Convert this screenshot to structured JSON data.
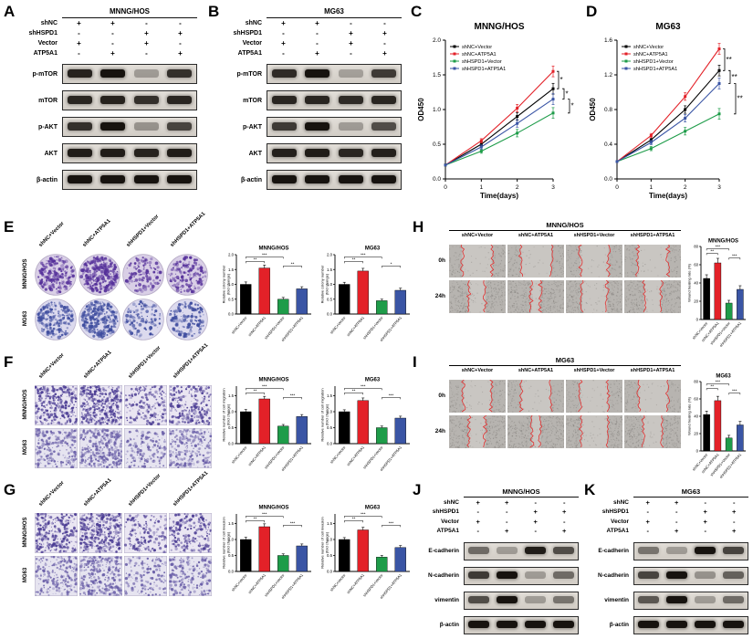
{
  "conditions": [
    "shNC+Vector",
    "shNC+ATP5A1",
    "shHSPD1+Vector",
    "shHSPD1+ATP5A1"
  ],
  "condition_rows": [
    {
      "name": "shNC",
      "signs": [
        "+",
        "+",
        "-",
        "-"
      ]
    },
    {
      "name": "shHSPD1",
      "signs": [
        "-",
        "-",
        "+",
        "+"
      ]
    },
    {
      "name": "Vector",
      "signs": [
        "+",
        "-",
        "+",
        "-"
      ]
    },
    {
      "name": "ATP5A1",
      "signs": [
        "-",
        "+",
        "-",
        "+"
      ]
    }
  ],
  "colors": {
    "series": [
      "#000000",
      "#e32128",
      "#1e9c49",
      "#3a55a5"
    ],
    "band": "#17130f",
    "colony_bg1": "#d9cfe6",
    "colony_dot1": "#55309a",
    "colony_bg2": "#dcdaee",
    "colony_dot2": "#3d4b9e",
    "transwell_bg1": "#eae6f2",
    "transwell_dot1": "#4a3b93",
    "transwell_bg2": "#e6e4f0",
    "transwell_dot2": "#6a5fa8",
    "wound_bg": "#b7b4b0",
    "wound_gap": "#c9c6c2",
    "wound_line": "#e23131"
  },
  "panelA": {
    "label": "A",
    "title": "MNNG/HOS",
    "proteins": [
      {
        "name": "p-mTOR",
        "intensities": [
          0.92,
          1,
          0.3,
          0.85
        ]
      },
      {
        "name": "mTOR",
        "intensities": [
          0.9,
          0.92,
          0.85,
          0.9
        ]
      },
      {
        "name": "p-AKT",
        "intensities": [
          0.85,
          1,
          0.35,
          0.75
        ]
      },
      {
        "name": "AKT",
        "intensities": [
          0.95,
          0.95,
          0.92,
          0.95
        ]
      },
      {
        "name": "β-actin",
        "intensities": [
          1,
          1,
          1,
          1
        ]
      }
    ]
  },
  "panelB": {
    "label": "B",
    "title": "MG63",
    "proteins": [
      {
        "name": "p-mTOR",
        "intensities": [
          0.88,
          1,
          0.28,
          0.8
        ]
      },
      {
        "name": "mTOR",
        "intensities": [
          0.9,
          0.9,
          0.88,
          0.9
        ]
      },
      {
        "name": "p-AKT",
        "intensities": [
          0.8,
          1,
          0.3,
          0.7
        ]
      },
      {
        "name": "AKT",
        "intensities": [
          0.93,
          0.95,
          0.9,
          0.93
        ]
      },
      {
        "name": "β-actin",
        "intensities": [
          1,
          1,
          1,
          1
        ]
      }
    ]
  },
  "panelC": {
    "label": "C",
    "title": "MNNG/HOS",
    "xlabel": "Time(days)",
    "ylabel": "OD450",
    "xticks": [
      0,
      1,
      2,
      3
    ],
    "yticks": [
      0,
      0.5,
      1,
      1.5,
      2
    ],
    "ylim": [
      0,
      2
    ],
    "series": [
      {
        "name": "shNC+Vector",
        "values": [
          0.2,
          0.5,
          0.9,
          1.3
        ]
      },
      {
        "name": "shNC+ATP5A1",
        "values": [
          0.2,
          0.55,
          1.02,
          1.55
        ]
      },
      {
        "name": "shHSPD1+Vector",
        "values": [
          0.2,
          0.4,
          0.66,
          0.95
        ]
      },
      {
        "name": "shHSPD1+ATP5A1",
        "values": [
          0.2,
          0.46,
          0.8,
          1.15
        ]
      }
    ],
    "sig": [
      "*",
      "*",
      "*"
    ]
  },
  "panelD": {
    "label": "D",
    "title": "MG63",
    "xlabel": "Time(days)",
    "ylabel": "OD450",
    "xticks": [
      0,
      1,
      2,
      3
    ],
    "yticks": [
      0,
      0.4,
      0.8,
      1.2,
      1.6
    ],
    "ylim": [
      0,
      1.6
    ],
    "series": [
      {
        "name": "shNC+Vector",
        "values": [
          0.2,
          0.45,
          0.8,
          1.25
        ]
      },
      {
        "name": "shNC+ATP5A1",
        "values": [
          0.2,
          0.5,
          0.95,
          1.5
        ]
      },
      {
        "name": "shHSPD1+Vector",
        "values": [
          0.2,
          0.35,
          0.55,
          0.75
        ]
      },
      {
        "name": "shHSPD1+ATP5A1",
        "values": [
          0.2,
          0.42,
          0.7,
          1.1
        ]
      }
    ],
    "sig": [
      "**",
      "**",
      "**"
    ]
  },
  "panelE": {
    "label": "E",
    "row_labels": [
      "MNNG/HOS",
      "MG63"
    ],
    "densities": [
      [
        0.7,
        1,
        0.3,
        0.5
      ],
      [
        0.55,
        0.85,
        0.25,
        0.45
      ]
    ],
    "charts": [
      {
        "title": "MNNG/HOS",
        "ylabel": [
          "Relative colony number",
          "(fold change)"
        ],
        "values": [
          1,
          1.55,
          0.5,
          0.85
        ],
        "errors": [
          0.08,
          0.1,
          0.06,
          0.07
        ],
        "yticks": [
          0,
          0.5,
          1,
          1.5,
          2
        ],
        "ylim": [
          0,
          2
        ],
        "sig": [
          [
            0,
            2,
            "***"
          ],
          [
            0,
            1,
            "**"
          ],
          [
            2,
            3,
            "**"
          ]
        ]
      },
      {
        "title": "MG63",
        "ylabel": [
          "Relative colony number",
          "(fold change)"
        ],
        "values": [
          1,
          1.45,
          0.45,
          0.8
        ],
        "errors": [
          0.07,
          0.09,
          0.05,
          0.07
        ],
        "yticks": [
          0,
          0.5,
          1,
          1.5,
          2
        ],
        "ylim": [
          0,
          2
        ],
        "sig": [
          [
            0,
            2,
            "***"
          ],
          [
            0,
            1,
            "**"
          ],
          [
            2,
            3,
            "*"
          ]
        ]
      }
    ]
  },
  "panelF": {
    "label": "F",
    "row_labels": [
      "MNNG/HOS",
      "MG63"
    ],
    "densities": [
      [
        0.75,
        1,
        0.35,
        0.55
      ],
      [
        0.6,
        0.9,
        0.3,
        0.5
      ]
    ],
    "charts": [
      {
        "title": "MNNG/HOS",
        "ylabel": [
          "Relative number of cell migration",
          "(fold change)"
        ],
        "values": [
          1,
          1.4,
          0.55,
          0.85
        ],
        "errors": [
          0.07,
          0.08,
          0.05,
          0.06
        ],
        "yticks": [
          0,
          0.5,
          1,
          1.5
        ],
        "ylim": [
          0,
          1.8
        ],
        "sig": [
          [
            0,
            2,
            "***"
          ],
          [
            0,
            1,
            "**"
          ],
          [
            2,
            3,
            "***"
          ]
        ]
      },
      {
        "title": "MG63",
        "ylabel": [
          "Relative number of cell migration",
          "(fold change)"
        ],
        "values": [
          1,
          1.35,
          0.5,
          0.8
        ],
        "errors": [
          0.06,
          0.08,
          0.05,
          0.06
        ],
        "yticks": [
          0,
          0.5,
          1,
          1.5
        ],
        "ylim": [
          0,
          1.8
        ],
        "sig": [
          [
            0,
            2,
            "***"
          ],
          [
            0,
            1,
            "**"
          ],
          [
            2,
            3,
            "***"
          ]
        ]
      }
    ]
  },
  "panelG": {
    "label": "G",
    "row_labels": [
      "MNNG/HOS",
      "MG63"
    ],
    "densities": [
      [
        0.7,
        0.95,
        0.3,
        0.5
      ],
      [
        0.55,
        0.85,
        0.25,
        0.45
      ]
    ],
    "charts": [
      {
        "title": "MNNG/HOS",
        "ylabel": [
          "Relative number of cell invasion",
          "(fold change)"
        ],
        "values": [
          1,
          1.4,
          0.5,
          0.8
        ],
        "errors": [
          0.07,
          0.09,
          0.05,
          0.06
        ],
        "yticks": [
          0,
          0.5,
          1,
          1.5
        ],
        "ylim": [
          0,
          1.8
        ],
        "sig": [
          [
            0,
            2,
            "***"
          ],
          [
            0,
            1,
            "**"
          ],
          [
            2,
            3,
            "***"
          ]
        ]
      },
      {
        "title": "MG63",
        "ylabel": [
          "Relative number of cell invasion",
          "(fold change)"
        ],
        "values": [
          1,
          1.3,
          0.45,
          0.75
        ],
        "errors": [
          0.06,
          0.08,
          0.05,
          0.06
        ],
        "yticks": [
          0,
          0.5,
          1,
          1.5
        ],
        "ylim": [
          0,
          1.8
        ],
        "sig": [
          [
            0,
            2,
            "***"
          ],
          [
            0,
            1,
            "**"
          ],
          [
            2,
            3,
            "***"
          ]
        ]
      }
    ]
  },
  "panelH": {
    "label": "H",
    "title": "MNNG/HOS",
    "row_labels": [
      "0h",
      "24h"
    ],
    "gaps": [
      [
        0.52,
        0.52,
        0.52,
        0.52
      ],
      [
        0.28,
        0.15,
        0.44,
        0.33
      ]
    ],
    "chart": {
      "title": "MNNG/HOS",
      "ylabel": [
        "Wound healing rate (%)"
      ],
      "values": [
        45,
        62,
        18,
        33
      ],
      "errors": [
        4,
        5,
        3,
        4
      ],
      "yticks": [
        0,
        20,
        40,
        60,
        80
      ],
      "ylim": [
        0,
        80
      ],
      "sig": [
        [
          0,
          2,
          "***"
        ],
        [
          0,
          1,
          "**"
        ],
        [
          2,
          3,
          "***"
        ]
      ]
    }
  },
  "panelI": {
    "label": "I",
    "title": "MG63",
    "row_labels": [
      "0h",
      "24h"
    ],
    "gaps": [
      [
        0.52,
        0.52,
        0.52,
        0.52
      ],
      [
        0.3,
        0.17,
        0.46,
        0.35
      ]
    ],
    "chart": {
      "title": "MG63",
      "ylabel": [
        "Wound healing rate (%)"
      ],
      "values": [
        42,
        58,
        15,
        30
      ],
      "errors": [
        4,
        5,
        3,
        4
      ],
      "yticks": [
        0,
        20,
        40,
        60,
        80
      ],
      "ylim": [
        0,
        80
      ],
      "sig": [
        [
          0,
          2,
          "***"
        ],
        [
          0,
          1,
          "**"
        ],
        [
          2,
          3,
          "***"
        ]
      ]
    }
  },
  "panelJ": {
    "label": "J",
    "title": "MNNG/HOS",
    "proteins": [
      {
        "name": "E-cadherin",
        "intensities": [
          0.55,
          0.3,
          0.95,
          0.7
        ]
      },
      {
        "name": "N-cadherin",
        "intensities": [
          0.8,
          1,
          0.3,
          0.55
        ]
      },
      {
        "name": "vimentin",
        "intensities": [
          0.7,
          1,
          0.3,
          0.5
        ]
      },
      {
        "name": "β-actin",
        "intensities": [
          1,
          1,
          1,
          1
        ]
      }
    ]
  },
  "panelK": {
    "label": "K",
    "title": "MG63",
    "proteins": [
      {
        "name": "E-cadherin",
        "intensities": [
          0.5,
          0.3,
          1,
          0.75
        ]
      },
      {
        "name": "N-cadherin",
        "intensities": [
          0.75,
          1,
          0.35,
          0.6
        ]
      },
      {
        "name": "vimentin",
        "intensities": [
          0.65,
          1,
          0.3,
          0.55
        ]
      },
      {
        "name": "β-actin",
        "intensities": [
          1,
          1,
          1,
          1
        ]
      }
    ]
  }
}
